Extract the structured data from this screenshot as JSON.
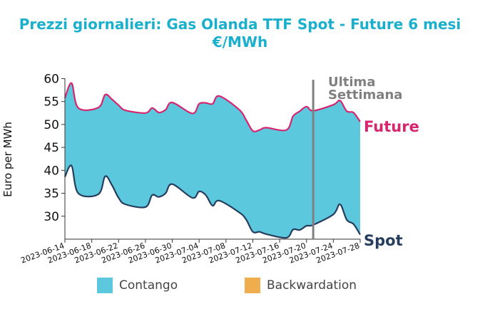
{
  "title_line1": "Prezzi giornalieri: Gas Olanda TTF Spot - Future 6 mesi",
  "title_line2": "€/MWh",
  "colors": {
    "contango": "#5bc8de",
    "backwardation": "#efad4d",
    "future": "#d6266f",
    "spot": "#263d5e",
    "marker": "#808080",
    "title": "#1ab0cd"
  },
  "legend": [
    {
      "label": "Contango",
      "color": "#5bc8de"
    },
    {
      "label": "Backwardation",
      "color": "#efad4d"
    }
  ],
  "chart_data": {
    "type": "area",
    "ylabel": "Euro per MWh",
    "ylim": [
      25,
      61
    ],
    "yticks": [
      30,
      35,
      40,
      45,
      50,
      55,
      60
    ],
    "xticks": [
      "2023-06-14",
      "2023-06-18",
      "2023-06-22",
      "2023-06-26",
      "2023-06-30",
      "2023-07-04",
      "2023-07-08",
      "2023-07-12",
      "2023-07-16",
      "2023-07-20",
      "2023-07-24",
      "2023-07-28"
    ],
    "x_start": "2023-06-14",
    "x_end": "2023-07-28",
    "marker": {
      "date": "2023-07-21",
      "label_line1": "Ultima",
      "label_line2": "Settimana"
    },
    "series": [
      {
        "name": "Future",
        "dates": [
          "2023-06-14",
          "2023-06-15",
          "2023-06-16",
          "2023-06-19",
          "2023-06-20",
          "2023-06-21",
          "2023-06-22",
          "2023-06-23",
          "2023-06-26",
          "2023-06-27",
          "2023-06-28",
          "2023-06-29",
          "2023-06-30",
          "2023-07-03",
          "2023-07-04",
          "2023-07-05",
          "2023-07-06",
          "2023-07-07",
          "2023-07-10",
          "2023-07-11",
          "2023-07-12",
          "2023-07-13",
          "2023-07-14",
          "2023-07-17",
          "2023-07-18",
          "2023-07-19",
          "2023-07-20",
          "2023-07-21",
          "2023-07-24",
          "2023-07-25",
          "2023-07-26",
          "2023-07-27",
          "2023-07-28"
        ],
        "values": [
          55.8,
          59.0,
          53.6,
          53.7,
          56.5,
          55.5,
          54.2,
          53.1,
          52.5,
          53.6,
          52.6,
          53.2,
          54.8,
          52.4,
          54.5,
          54.7,
          54.5,
          56.2,
          53.2,
          51.0,
          48.6,
          48.8,
          49.3,
          48.8,
          51.8,
          52.9,
          53.9,
          53.0,
          54.3,
          55.2,
          52.9,
          52.6,
          50.6
        ]
      },
      {
        "name": "Spot",
        "dates": [
          "2023-06-14",
          "2023-06-15",
          "2023-06-16",
          "2023-06-19",
          "2023-06-20",
          "2023-06-21",
          "2023-06-22",
          "2023-06-23",
          "2023-06-26",
          "2023-06-27",
          "2023-06-28",
          "2023-06-29",
          "2023-06-30",
          "2023-07-03",
          "2023-07-04",
          "2023-07-05",
          "2023-07-06",
          "2023-07-07",
          "2023-07-10",
          "2023-07-11",
          "2023-07-12",
          "2023-07-13",
          "2023-07-14",
          "2023-07-17",
          "2023-07-18",
          "2023-07-19",
          "2023-07-20",
          "2023-07-21",
          "2023-07-24",
          "2023-07-25",
          "2023-07-26",
          "2023-07-27",
          "2023-07-28"
        ],
        "values": [
          38.6,
          41.0,
          35.0,
          34.8,
          38.7,
          36.8,
          34.0,
          32.6,
          32.0,
          34.6,
          34.2,
          35.0,
          37.0,
          34.0,
          35.4,
          34.6,
          32.3,
          33.4,
          30.8,
          29.3,
          26.6,
          26.6,
          26.1,
          25.3,
          27.1,
          27.0,
          27.9,
          28.1,
          30.4,
          32.6,
          29.2,
          28.3,
          26.0
        ]
      }
    ]
  }
}
